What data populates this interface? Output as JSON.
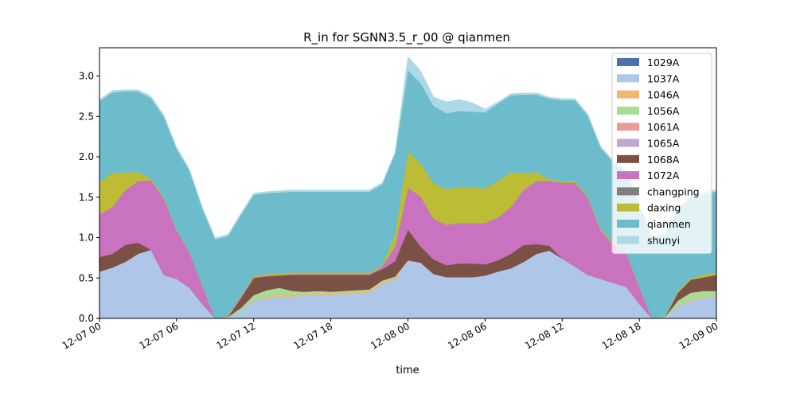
{
  "chart_data": {
    "type": "area",
    "stacked": true,
    "title": "R_in for SGNN3.5_r_00 @ qianmen",
    "xlabel": "time",
    "ylabel": "",
    "x": [
      "2021-12-07 00:00",
      "2021-12-07 01:00",
      "2021-12-07 02:00",
      "2021-12-07 03:00",
      "2021-12-07 04:00",
      "2021-12-07 05:00",
      "2021-12-07 06:00",
      "2021-12-07 07:00",
      "2021-12-07 08:00",
      "2021-12-07 09:00",
      "2021-12-07 10:00",
      "2021-12-07 11:00",
      "2021-12-07 12:00",
      "2021-12-07 13:00",
      "2021-12-07 14:00",
      "2021-12-07 15:00",
      "2021-12-07 16:00",
      "2021-12-07 17:00",
      "2021-12-07 18:00",
      "2021-12-07 19:00",
      "2021-12-07 20:00",
      "2021-12-07 21:00",
      "2021-12-07 22:00",
      "2021-12-07 23:00",
      "2021-12-08 00:00",
      "2021-12-08 01:00",
      "2021-12-08 02:00",
      "2021-12-08 03:00",
      "2021-12-08 04:00",
      "2021-12-08 05:00",
      "2021-12-08 06:00",
      "2021-12-08 07:00",
      "2021-12-08 08:00",
      "2021-12-08 09:00",
      "2021-12-08 10:00",
      "2021-12-08 11:00",
      "2021-12-08 12:00",
      "2021-12-08 13:00",
      "2021-12-08 14:00",
      "2021-12-08 15:00",
      "2021-12-08 16:00",
      "2021-12-08 17:00",
      "2021-12-08 18:00",
      "2021-12-08 19:00",
      "2021-12-08 20:00",
      "2021-12-08 21:00",
      "2021-12-08 22:00",
      "2021-12-08 23:00",
      "2021-12-09 00:00"
    ],
    "xlim": [
      "2021-12-07 00:00",
      "2021-12-09 00:00"
    ],
    "x_ticks": [
      "12-07 00",
      "12-07 06",
      "12-07 12",
      "12-07 18",
      "12-08 00",
      "12-08 06",
      "12-08 12",
      "12-08 18",
      "12-09 00"
    ],
    "ylim": [
      0,
      3.35
    ],
    "y_ticks": [
      "0.0",
      "0.5",
      "1.0",
      "1.5",
      "2.0",
      "2.5",
      "3.0"
    ],
    "grid": false,
    "legend_position": "top-right",
    "series": [
      {
        "name": "1029A",
        "color": "#4a72b0",
        "values": [
          0,
          0,
          0,
          0,
          0,
          0,
          0,
          0,
          0,
          0,
          0,
          0,
          0,
          0,
          0,
          0,
          0,
          0,
          0,
          0,
          0,
          0,
          0,
          0,
          0,
          0,
          0,
          0,
          0,
          0,
          0,
          0,
          0,
          0,
          0,
          0,
          0,
          0,
          0,
          0,
          0,
          0,
          0,
          0,
          0,
          0,
          0,
          0,
          0
        ]
      },
      {
        "name": "1037A",
        "color": "#aec7e8",
        "values": [
          0.58,
          0.63,
          0.7,
          0.8,
          0.85,
          0.54,
          0.49,
          0.38,
          0.18,
          0,
          0.02,
          0.1,
          0.22,
          0.25,
          0.27,
          0.27,
          0.28,
          0.29,
          0.29,
          0.3,
          0.31,
          0.32,
          0.43,
          0.48,
          0.72,
          0.69,
          0.55,
          0.51,
          0.51,
          0.51,
          0.53,
          0.58,
          0.62,
          0.7,
          0.8,
          0.84,
          0.74,
          0.64,
          0.54,
          0.49,
          0.44,
          0.39,
          0.18,
          0,
          0.02,
          0.15,
          0.22,
          0.25,
          0.27
        ]
      },
      {
        "name": "1046A",
        "color": "#f0b771",
        "values": [
          0,
          0,
          0,
          0,
          0,
          0,
          0,
          0,
          0,
          0,
          0,
          0,
          0.01,
          0.02,
          0.02,
          0.02,
          0.02,
          0.02,
          0.02,
          0.02,
          0.02,
          0.02,
          0.02,
          0.02,
          0,
          0,
          0,
          0,
          0,
          0,
          0,
          0,
          0,
          0,
          0,
          0,
          0,
          0,
          0,
          0,
          0,
          0,
          0,
          0,
          0,
          0.01,
          0.01,
          0.01,
          0.01
        ]
      },
      {
        "name": "1056A",
        "color": "#a8dc94",
        "values": [
          0,
          0,
          0,
          0,
          0,
          0,
          0,
          0,
          0,
          0,
          0,
          0.03,
          0.06,
          0.08,
          0.09,
          0.05,
          0.03,
          0.03,
          0.02,
          0.02,
          0.02,
          0.02,
          0.02,
          0.02,
          0,
          0,
          0,
          0,
          0,
          0,
          0,
          0,
          0,
          0,
          0,
          0,
          0,
          0,
          0,
          0,
          0,
          0,
          0,
          0,
          0,
          0.06,
          0.09,
          0.08,
          0.06
        ]
      },
      {
        "name": "1061A",
        "color": "#e89c9a",
        "values": [
          0,
          0,
          0,
          0,
          0,
          0,
          0,
          0,
          0,
          0,
          0,
          0,
          0,
          0,
          0,
          0,
          0,
          0,
          0,
          0,
          0,
          0,
          0,
          0,
          0,
          0,
          0,
          0,
          0,
          0,
          0,
          0,
          0,
          0,
          0,
          0,
          0,
          0,
          0,
          0,
          0,
          0,
          0,
          0,
          0,
          0,
          0,
          0,
          0
        ]
      },
      {
        "name": "1065A",
        "color": "#c0a6d2",
        "values": [
          0,
          0,
          0,
          0,
          0,
          0,
          0,
          0,
          0,
          0,
          0,
          0,
          0,
          0,
          0,
          0,
          0,
          0,
          0,
          0,
          0,
          0,
          0,
          0,
          0,
          0,
          0,
          0,
          0,
          0,
          0,
          0,
          0,
          0,
          0,
          0,
          0,
          0,
          0,
          0,
          0,
          0,
          0,
          0,
          0,
          0,
          0,
          0,
          0
        ]
      },
      {
        "name": "1068A",
        "color": "#7b5146",
        "values": [
          0.18,
          0.17,
          0.21,
          0.14,
          0,
          0,
          0,
          0,
          0,
          0,
          0,
          0.12,
          0.21,
          0.17,
          0.15,
          0.2,
          0.21,
          0.2,
          0.21,
          0.2,
          0.19,
          0.18,
          0.14,
          0.19,
          0.38,
          0.2,
          0.18,
          0.15,
          0.17,
          0.17,
          0.14,
          0.14,
          0.18,
          0.21,
          0.12,
          0.06,
          0,
          0,
          0,
          0,
          0,
          0,
          0,
          0,
          0,
          0.1,
          0.16,
          0.17,
          0.2
        ]
      },
      {
        "name": "1072A",
        "color": "#c973c0",
        "values": [
          0.53,
          0.58,
          0.68,
          0.76,
          0.86,
          0.94,
          0.6,
          0.44,
          0.22,
          0,
          0.01,
          0.02,
          0.01,
          0.01,
          0.01,
          0.01,
          0.01,
          0.01,
          0.01,
          0.01,
          0.01,
          0.01,
          0.03,
          0.18,
          0.52,
          0.62,
          0.5,
          0.5,
          0.5,
          0.5,
          0.51,
          0.53,
          0.58,
          0.68,
          0.78,
          0.8,
          0.94,
          1.04,
          0.95,
          0.6,
          0.47,
          0.41,
          0.21,
          0,
          0,
          0,
          0,
          0,
          0
        ]
      },
      {
        "name": "changping",
        "color": "#7f7f7f",
        "values": [
          0,
          0,
          0,
          0,
          0,
          0,
          0,
          0,
          0,
          0,
          0,
          0,
          0,
          0,
          0,
          0,
          0,
          0,
          0,
          0,
          0,
          0,
          0,
          0,
          0,
          0,
          0,
          0,
          0,
          0,
          0,
          0,
          0,
          0,
          0,
          0,
          0,
          0,
          0,
          0,
          0,
          0,
          0,
          0,
          0,
          0,
          0,
          0,
          0
        ]
      },
      {
        "name": "daxing",
        "color": "#bdbd35",
        "values": [
          0.4,
          0.42,
          0.22,
          0.11,
          0.02,
          0.02,
          0.01,
          0.01,
          0.01,
          0,
          0.01,
          0.01,
          0.02,
          0.02,
          0.02,
          0.02,
          0.02,
          0.02,
          0.02,
          0.02,
          0.02,
          0.02,
          0.02,
          0.15,
          0.45,
          0.4,
          0.44,
          0.44,
          0.45,
          0.44,
          0.43,
          0.45,
          0.43,
          0.21,
          0.11,
          0.02,
          0.02,
          0.02,
          0.02,
          0.02,
          0.02,
          0.01,
          0.01,
          0,
          0.01,
          0.02,
          0.02,
          0.03,
          0.03
        ]
      },
      {
        "name": "qianmen",
        "color": "#6dbccb",
        "values": [
          1.0,
          1.0,
          1.0,
          1.0,
          1.0,
          1.0,
          1.0,
          1.0,
          0.95,
          0.98,
          0.98,
          1.0,
          1.0,
          1.0,
          1.0,
          1.0,
          1.0,
          1.0,
          1.0,
          1.0,
          1.0,
          1.0,
          1.0,
          1.0,
          1.0,
          1.0,
          0.96,
          0.94,
          0.94,
          0.94,
          0.94,
          0.96,
          0.95,
          0.97,
          0.96,
          1.0,
          1.0,
          1.0,
          1.0,
          1.0,
          1.0,
          1.0,
          1.0,
          1.0,
          1.0,
          1.0,
          1.0,
          1.0,
          1.0
        ]
      },
      {
        "name": "shunyi",
        "color": "#add8e6",
        "values": [
          0.02,
          0.02,
          0.02,
          0.02,
          0.02,
          0.02,
          0.02,
          0.02,
          0.02,
          0.02,
          0.02,
          0.02,
          0.02,
          0.02,
          0.02,
          0.02,
          0.02,
          0.02,
          0.02,
          0.02,
          0.02,
          0.02,
          0.02,
          0.02,
          0.17,
          0.15,
          0.11,
          0.14,
          0.14,
          0.11,
          0.04,
          0.02,
          0.02,
          0.02,
          0.02,
          0.02,
          0.02,
          0.02,
          0.02,
          0.02,
          0.02,
          0.02,
          0.02,
          0.02,
          0.02,
          0.02,
          0.02,
          0.02,
          0.02
        ]
      }
    ]
  }
}
